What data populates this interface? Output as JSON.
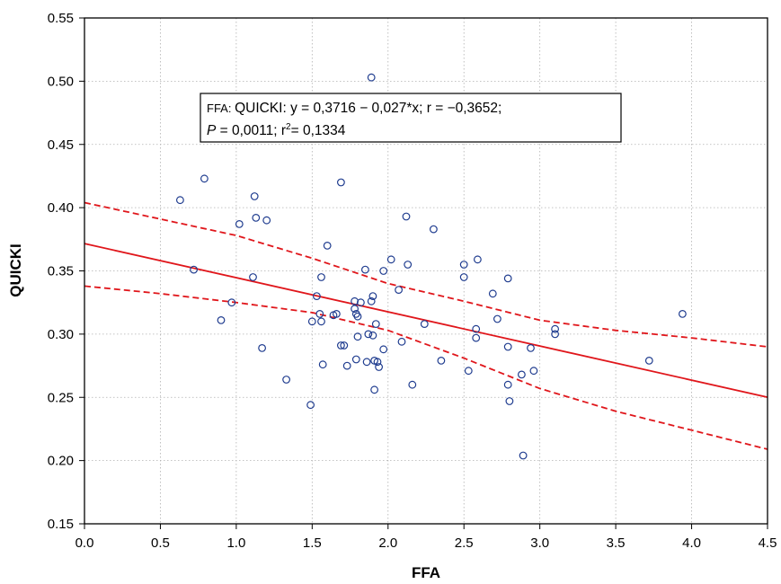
{
  "chart_data": {
    "type": "scatter",
    "xlabel": "FFA",
    "ylabel": "QUICKI",
    "xlim": [
      0.0,
      4.5
    ],
    "ylim": [
      0.15,
      0.55
    ],
    "grid": true,
    "x_ticks": [
      "0.0",
      "0.5",
      "1.0",
      "1.5",
      "2.0",
      "2.5",
      "3.0",
      "3.5",
      "4.0",
      "4.5"
    ],
    "y_ticks": [
      "0.15",
      "0.20",
      "0.25",
      "0.30",
      "0.35",
      "0.40",
      "0.45",
      "0.50",
      "0.55"
    ],
    "annotation": {
      "line1_prefix": "FFA: ",
      "line1_main": "QUICKI:   y = 0,3716 − 0,027*x;  r = −0,3652;",
      "line2_p": "P",
      "line2_rest1": " = 0,0011; r",
      "line2_sup": "2",
      "line2_rest2": "= 0,1334"
    },
    "colors": {
      "points": "#1f3c8f",
      "fit": "#e0161b",
      "grid": "#b0b0b0"
    },
    "regression": {
      "intercept": 0.3716,
      "slope": -0.027
    },
    "confidence_band": {
      "upper": [
        [
          0.0,
          0.404
        ],
        [
          0.5,
          0.391
        ],
        [
          1.0,
          0.378
        ],
        [
          1.5,
          0.36
        ],
        [
          2.0,
          0.34
        ],
        [
          2.5,
          0.326
        ],
        [
          3.0,
          0.311
        ],
        [
          3.5,
          0.303
        ],
        [
          4.0,
          0.297
        ],
        [
          4.5,
          0.29
        ]
      ],
      "lower": [
        [
          0.0,
          0.338
        ],
        [
          0.5,
          0.332
        ],
        [
          1.0,
          0.325
        ],
        [
          1.5,
          0.317
        ],
        [
          2.0,
          0.303
        ],
        [
          2.5,
          0.281
        ],
        [
          3.0,
          0.257
        ],
        [
          3.5,
          0.239
        ],
        [
          4.0,
          0.224
        ],
        [
          4.5,
          0.209
        ]
      ]
    },
    "points": [
      [
        0.63,
        0.406
      ],
      [
        0.72,
        0.351
      ],
      [
        0.79,
        0.423
      ],
      [
        0.9,
        0.311
      ],
      [
        0.97,
        0.325
      ],
      [
        1.02,
        0.387
      ],
      [
        1.11,
        0.345
      ],
      [
        1.12,
        0.409
      ],
      [
        1.13,
        0.392
      ],
      [
        1.17,
        0.289
      ],
      [
        1.2,
        0.39
      ],
      [
        1.33,
        0.264
      ],
      [
        1.49,
        0.244
      ],
      [
        1.5,
        0.31
      ],
      [
        1.53,
        0.33
      ],
      [
        1.55,
        0.316
      ],
      [
        1.56,
        0.345
      ],
      [
        1.56,
        0.31
      ],
      [
        1.57,
        0.276
      ],
      [
        1.6,
        0.37
      ],
      [
        1.64,
        0.315
      ],
      [
        1.66,
        0.316
      ],
      [
        1.69,
        0.42
      ],
      [
        1.69,
        0.291
      ],
      [
        1.71,
        0.291
      ],
      [
        1.73,
        0.275
      ],
      [
        1.78,
        0.32
      ],
      [
        1.78,
        0.326
      ],
      [
        1.79,
        0.28
      ],
      [
        1.79,
        0.316
      ],
      [
        1.8,
        0.314
      ],
      [
        1.8,
        0.298
      ],
      [
        1.82,
        0.325
      ],
      [
        1.85,
        0.351
      ],
      [
        1.86,
        0.278
      ],
      [
        1.87,
        0.3
      ],
      [
        1.89,
        0.326
      ],
      [
        1.89,
        0.503
      ],
      [
        1.9,
        0.299
      ],
      [
        1.9,
        0.33
      ],
      [
        1.91,
        0.279
      ],
      [
        1.91,
        0.256
      ],
      [
        1.92,
        0.308
      ],
      [
        1.93,
        0.278
      ],
      [
        1.94,
        0.274
      ],
      [
        1.97,
        0.288
      ],
      [
        1.97,
        0.35
      ],
      [
        2.02,
        0.359
      ],
      [
        2.07,
        0.335
      ],
      [
        2.09,
        0.294
      ],
      [
        2.12,
        0.393
      ],
      [
        2.13,
        0.355
      ],
      [
        2.16,
        0.26
      ],
      [
        2.24,
        0.308
      ],
      [
        2.3,
        0.383
      ],
      [
        2.35,
        0.279
      ],
      [
        2.5,
        0.345
      ],
      [
        2.5,
        0.355
      ],
      [
        2.53,
        0.271
      ],
      [
        2.58,
        0.304
      ],
      [
        2.58,
        0.297
      ],
      [
        2.59,
        0.359
      ],
      [
        2.69,
        0.332
      ],
      [
        2.72,
        0.312
      ],
      [
        2.79,
        0.344
      ],
      [
        2.79,
        0.29
      ],
      [
        2.79,
        0.26
      ],
      [
        2.8,
        0.247
      ],
      [
        2.88,
        0.268
      ],
      [
        2.89,
        0.204
      ],
      [
        2.94,
        0.289
      ],
      [
        2.96,
        0.271
      ],
      [
        3.1,
        0.304
      ],
      [
        3.1,
        0.3
      ],
      [
        3.72,
        0.279
      ],
      [
        3.94,
        0.316
      ]
    ]
  }
}
